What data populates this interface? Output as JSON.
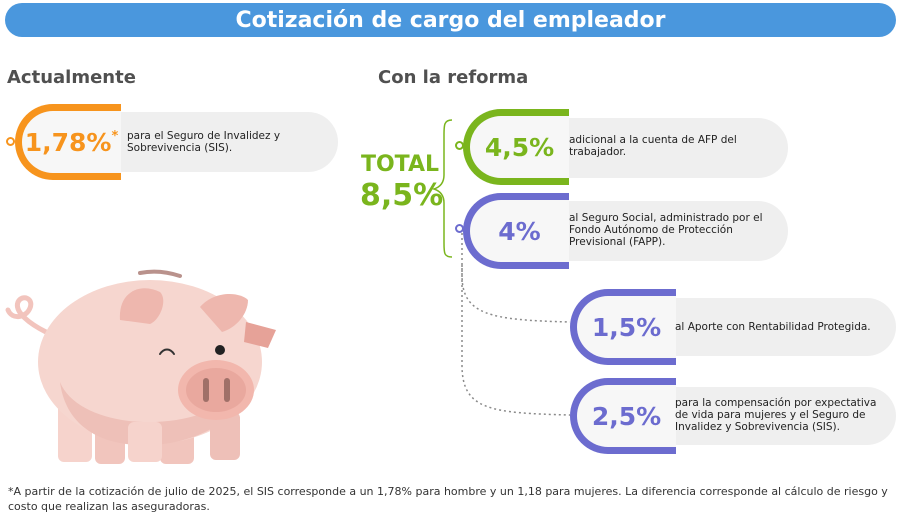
{
  "header": {
    "title": "Cotización de cargo del empleador"
  },
  "current": {
    "title": "Actualmente",
    "item": {
      "value": "1,78%",
      "mark": "*",
      "text": "para el Seguro de Invalidez y Sobrevivencia (SIS)."
    }
  },
  "reform": {
    "title": "Con la reforma",
    "total_label": "TOTAL",
    "total_value": "8,5%",
    "items": [
      {
        "value": "4,5%",
        "text": "adicional a la cuenta de AFP del trabajador."
      },
      {
        "value": "4%",
        "text": "al Seguro Social, administrado por el Fondo Autónomo de Protección Previsional (FAPP)."
      },
      {
        "value": "1,5%",
        "text": "al Aporte con Rentabilidad Protegida."
      },
      {
        "value": "2,5%",
        "text": "para la compensación por expectativa de vida para mujeres y el Seguro de Invalidez y Sobrevivencia (SIS)."
      }
    ]
  },
  "footnote": "*A partir de la cotización de julio de 2025, el SIS corresponde a un 1,78% para hombre y un 1,18 para mujeres. La diferencia corresponde al cálculo de riesgo y costo que realizan las aseguradoras.",
  "colors": {
    "banner": "#4a97dd",
    "orange": "#f7941d",
    "green": "#7ab51d",
    "purple": "#6c6ccf"
  },
  "icons": [
    "piggy-bank-illustration",
    "curly-brace-icon",
    "dotted-connector-lines"
  ]
}
